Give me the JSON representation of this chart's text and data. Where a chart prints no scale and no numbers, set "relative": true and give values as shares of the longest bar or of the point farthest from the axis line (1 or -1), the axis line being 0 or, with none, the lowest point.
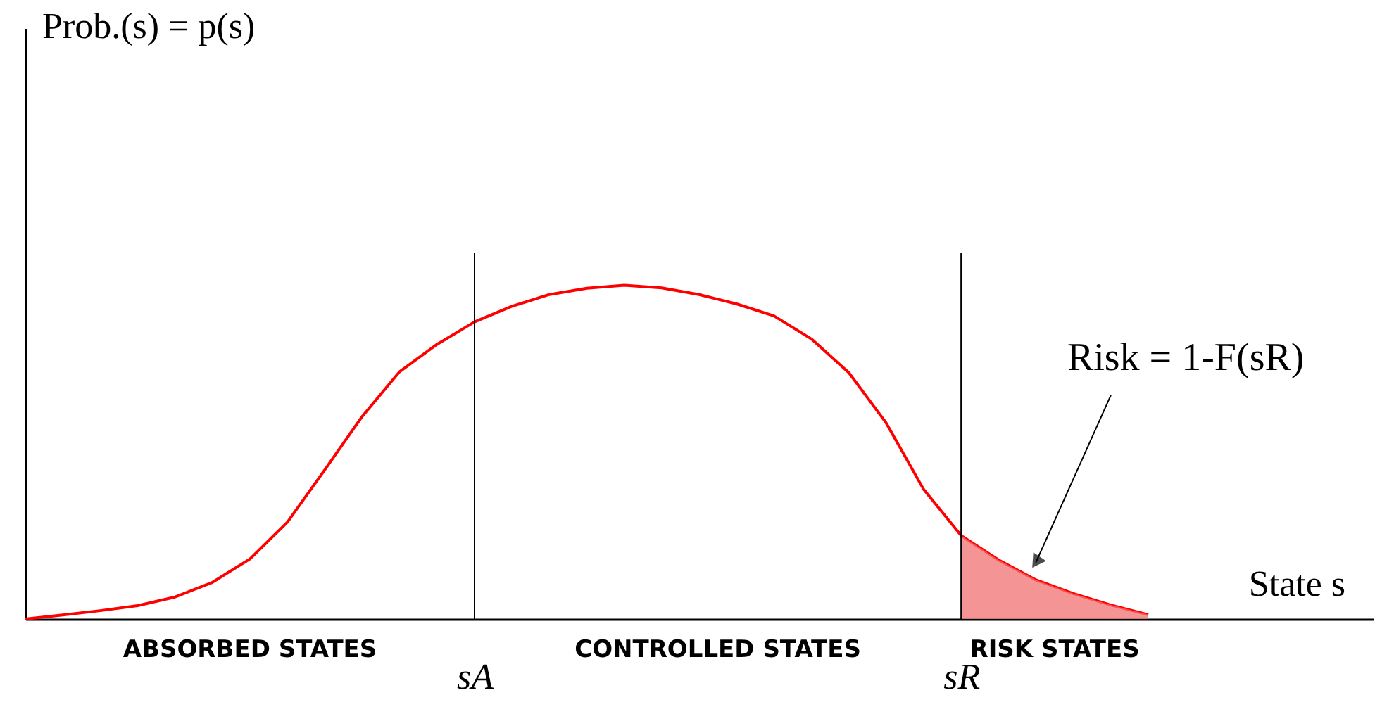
{
  "chart_data": {
    "type": "line",
    "relative": true,
    "xlabel": "State s",
    "tick_labels": "x",
    "marker": "none",
    "line_style": "solid",
    "categories": [
      null,
      null,
      null,
      null,
      null,
      null,
      null,
      null,
      null,
      null,
      null,
      null,
      "sA",
      null,
      null,
      null,
      null,
      null,
      null,
      null,
      null,
      null,
      null,
      null,
      null,
      "sR",
      null,
      null,
      null,
      null,
      null
    ],
    "series": [
      {
        "color": "#ff0000",
        "values": [
          0,
          0.012,
          0.025,
          0.04,
          0.066,
          0.11,
          0.18,
          0.29,
          0.447,
          0.607,
          0.741,
          0.823,
          0.89,
          0.937,
          0.972,
          0.991,
          1,
          0.992,
          0.972,
          0.944,
          0.908,
          0.839,
          0.738,
          0.587,
          0.388,
          0.25,
          0.177,
          0.117,
          0.076,
          0.042,
          0.013
        ]
      },
      {
        "type": "area",
        "color": "#f07070",
        "values": [
          null,
          null,
          null,
          null,
          null,
          null,
          null,
          null,
          null,
          null,
          null,
          null,
          null,
          null,
          null,
          null,
          null,
          null,
          null,
          null,
          null,
          null,
          null,
          null,
          null,
          0.25,
          0.177,
          0.117,
          0.076,
          0.042,
          0.013
        ]
      }
    ],
    "ref_lines": [
      {
        "axis": "x",
        "value": "sA",
        "color": "#000000"
      },
      {
        "axis": "x",
        "value": "sR",
        "color": "#000000"
      }
    ],
    "annotations": [
      "ABSORBED STATES",
      "CONTROLLED STATES",
      "RISK STATES",
      "Risk = 1-F(sR)",
      "Prob.(s) = p(s)"
    ]
  }
}
